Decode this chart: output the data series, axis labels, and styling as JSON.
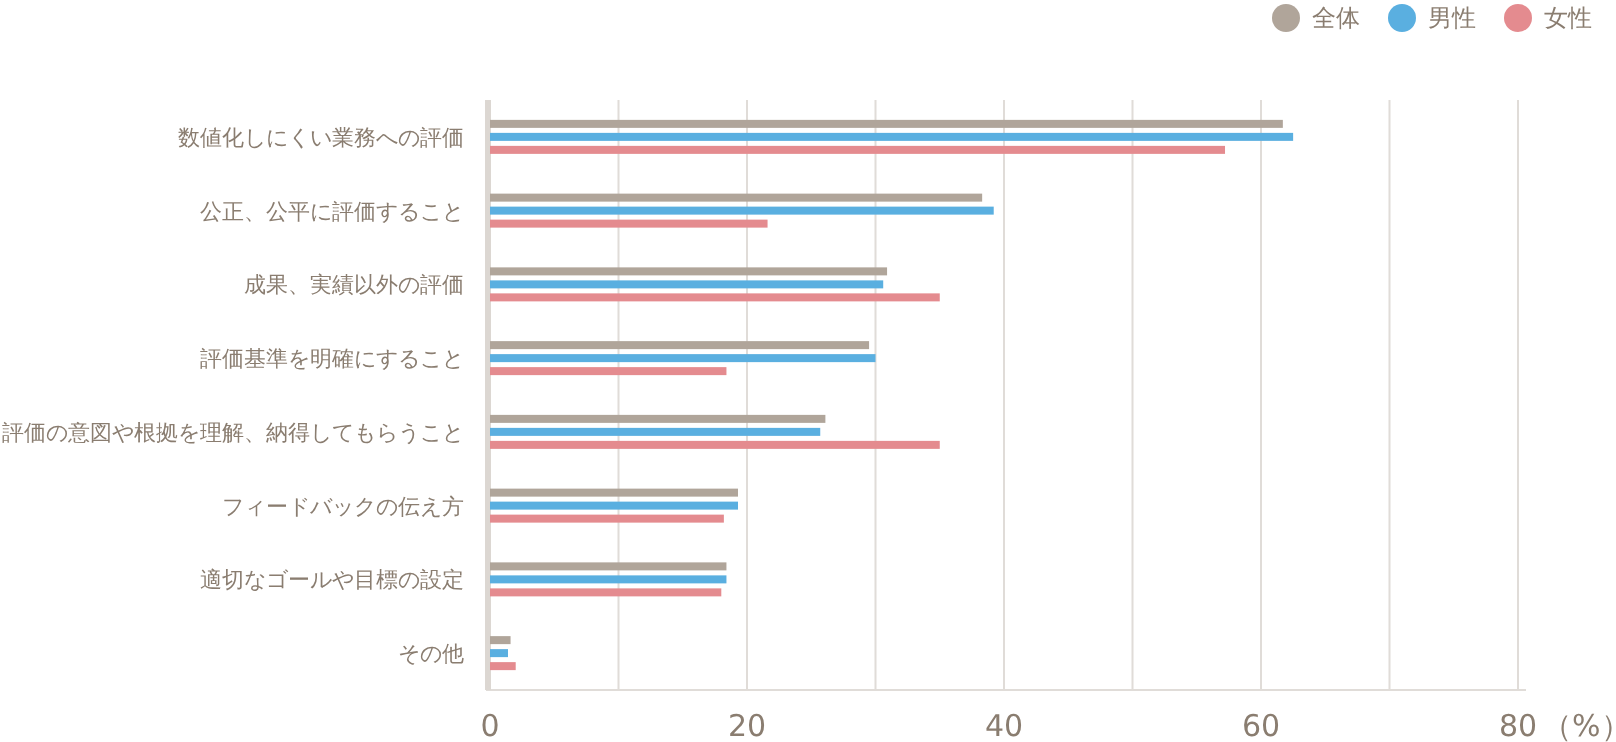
{
  "chart_data": {
    "type": "bar",
    "orientation": "horizontal",
    "categories": [
      "数値化しにくい業務への評価",
      "公正、公平に評価すること",
      "成果、実績以外の評価",
      "評価基準を明確にすること",
      "評価の意図や根拠を理解、納得してもらうこと",
      "フィードバックの伝え方",
      "適切なゴールや目標の設定",
      "その他"
    ],
    "series": [
      {
        "name": "全体",
        "color": "#b0a59a",
        "values": [
          61.7,
          38.3,
          30.9,
          29.5,
          26.1,
          19.3,
          18.4,
          1.6
        ]
      },
      {
        "name": "男性",
        "color": "#5aafe0",
        "values": [
          62.5,
          39.2,
          30.6,
          30.0,
          25.7,
          19.3,
          18.4,
          1.4
        ]
      },
      {
        "name": "女性",
        "color": "#e48b8f",
        "values": [
          57.2,
          21.6,
          35.0,
          18.4,
          35.0,
          18.2,
          18.0,
          2.0
        ]
      }
    ],
    "xlim": [
      0,
      80
    ],
    "xticks": [
      0,
      {
        "value": 10,
        "label": null
      },
      20,
      {
        "value": 30,
        "label": null
      },
      40,
      {
        "value": 50,
        "label": null
      },
      60,
      {
        "value": 70,
        "label": null
      },
      80
    ],
    "xlabel": "（%）",
    "grid": "x",
    "legend": "top right"
  }
}
